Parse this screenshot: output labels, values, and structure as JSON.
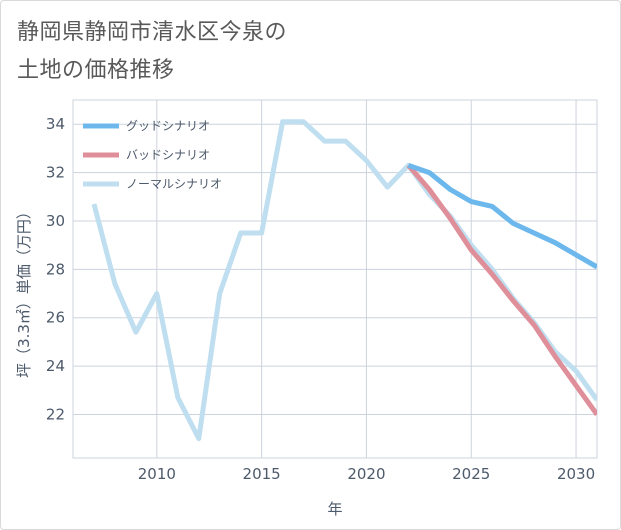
{
  "title_lines": [
    "静岡県静岡市清水区今泉の",
    "土地の価格推移"
  ],
  "chart_data": {
    "type": "line",
    "title": "静岡県静岡市清水区今泉の土地の価格推移",
    "xlabel": "年",
    "ylabel": "坪（3.3㎡）単価（万円）",
    "xlim": [
      2006,
      2031
    ],
    "ylim": [
      20.2,
      35
    ],
    "xticks": [
      2010,
      2015,
      2020,
      2025,
      2030
    ],
    "yticks": [
      22,
      24,
      26,
      28,
      30,
      32,
      34
    ],
    "grid": true,
    "legend_position": "top-left",
    "series": [
      {
        "name": "グッドシナリオ",
        "color": "#6cb8ec",
        "x": [
          2022,
          2023,
          2024,
          2025,
          2026,
          2027,
          2028,
          2029,
          2030,
          2031
        ],
        "values": [
          32.3,
          32.0,
          31.3,
          30.8,
          30.6,
          29.9,
          29.5,
          29.1,
          28.6,
          28.1
        ]
      },
      {
        "name": "バッドシナリオ",
        "color": "#df8f99",
        "x": [
          2022,
          2023,
          2024,
          2025,
          2026,
          2027,
          2028,
          2029,
          2030,
          2031
        ],
        "values": [
          32.3,
          31.3,
          30.1,
          28.8,
          27.8,
          26.7,
          25.7,
          24.4,
          23.2,
          22.0
        ]
      },
      {
        "name": "ノーマルシナリオ",
        "color": "#bfdff0",
        "x": [
          2007,
          2008,
          2009,
          2010,
          2011,
          2012,
          2013,
          2014,
          2015,
          2016,
          2017,
          2018,
          2019,
          2020,
          2021,
          2022,
          2023,
          2024,
          2025,
          2026,
          2027,
          2028,
          2029,
          2030,
          2031
        ],
        "values": [
          30.7,
          27.4,
          25.4,
          27.0,
          22.7,
          21.0,
          27.0,
          29.5,
          29.5,
          34.1,
          34.1,
          33.3,
          33.3,
          32.5,
          31.4,
          32.3,
          31.1,
          30.2,
          29.0,
          28.0,
          26.8,
          25.8,
          24.6,
          23.8,
          22.6
        ]
      }
    ]
  }
}
